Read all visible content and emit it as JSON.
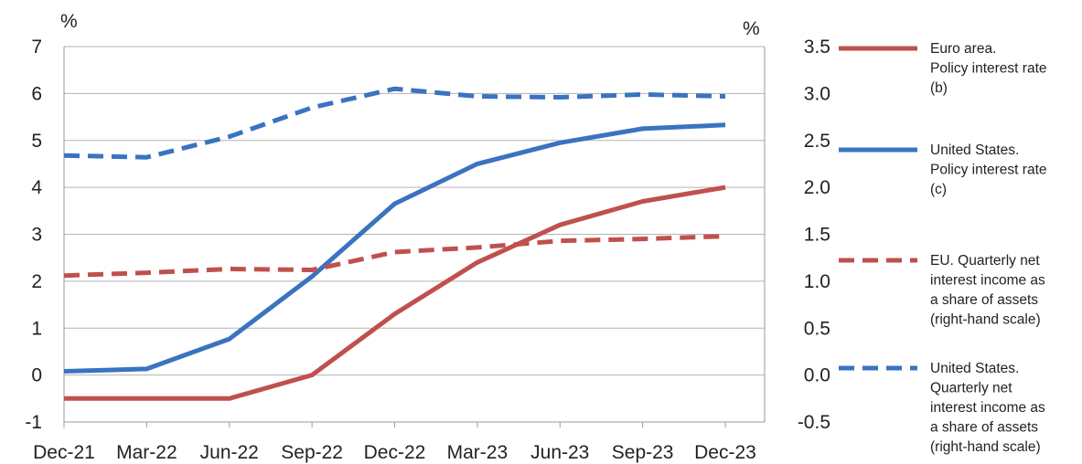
{
  "chart_data": {
    "type": "line",
    "categories": [
      "Dec-21",
      "Mar-22",
      "Jun-22",
      "Sep-22",
      "Dec-22",
      "Mar-23",
      "Jun-23",
      "Sep-23",
      "Dec-23"
    ],
    "left_axis": {
      "unit": "%",
      "ylim": [
        -1,
        7
      ],
      "ticks": [
        "-1",
        "0",
        "1",
        "2",
        "3",
        "4",
        "5",
        "6",
        "7"
      ]
    },
    "right_axis": {
      "unit": "%",
      "ylim": [
        -0.5,
        3.5
      ],
      "ticks": [
        "-0.5",
        "0.0",
        "0.5",
        "1.0",
        "1.5",
        "2.0",
        "2.5",
        "3.0",
        "3.5"
      ]
    },
    "grid": true,
    "legend_position": "right",
    "series": [
      {
        "name_lines": [
          "Euro area.",
          "Policy interest rate",
          "(b)"
        ],
        "axis": "left",
        "style": "solid",
        "color": "#c0504d",
        "values": [
          -0.5,
          -0.5,
          -0.5,
          0.0,
          1.3,
          2.4,
          3.2,
          3.7,
          4.0
        ]
      },
      {
        "name_lines": [
          "United States.",
          "Policy interest rate",
          "(c)"
        ],
        "axis": "left",
        "style": "solid",
        "color": "#3a73c0",
        "values": [
          0.08,
          0.13,
          0.77,
          2.1,
          3.65,
          4.5,
          4.95,
          5.25,
          5.33
        ]
      },
      {
        "name_lines": [
          "EU. Quarterly net",
          "interest income as",
          "a share of assets",
          "(right-hand scale)"
        ],
        "axis": "right",
        "style": "dashed",
        "color": "#c0504d",
        "values": [
          1.06,
          1.09,
          1.13,
          1.12,
          1.31,
          1.36,
          1.43,
          1.45,
          1.48
        ]
      },
      {
        "name_lines": [
          "United States.",
          "Quarterly net",
          "interest income as",
          "a share of assets",
          "(right-hand scale)"
        ],
        "axis": "right",
        "style": "dashed",
        "color": "#3a73c0",
        "values": [
          2.34,
          2.32,
          2.54,
          2.85,
          3.05,
          2.97,
          2.96,
          2.99,
          2.97
        ]
      }
    ]
  }
}
